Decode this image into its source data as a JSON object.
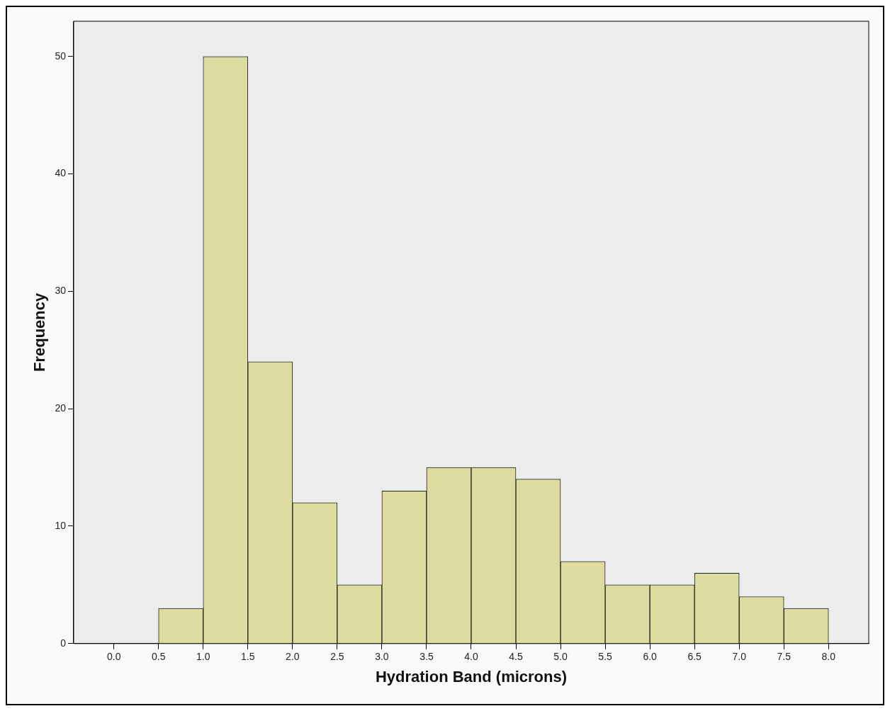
{
  "chart_data": {
    "type": "histogram",
    "xlabel": "Hydration Band (microns)",
    "ylabel": "Frequency",
    "bins": [
      0.5,
      1.0,
      1.5,
      2.0,
      2.5,
      3.0,
      3.5,
      4.0,
      4.5,
      5.0,
      5.5,
      6.0,
      6.5,
      7.0,
      7.5,
      8.0
    ],
    "values": [
      3,
      50,
      24,
      12,
      5,
      13,
      15,
      15,
      14,
      7,
      5,
      5,
      6,
      4,
      3
    ],
    "color": "#dcdca0",
    "xlim": [
      -0.45,
      8.45
    ],
    "xticks": [
      {
        "value": 0,
        "label": "0.0"
      },
      {
        "value": 0.5,
        "label": "0.5"
      },
      {
        "value": 1,
        "label": "1.0"
      },
      {
        "value": 1.5,
        "label": "1.5"
      },
      {
        "value": 2,
        "label": "2.0"
      },
      {
        "value": 2.5,
        "label": "2.5"
      },
      {
        "value": 3,
        "label": "3.0"
      },
      {
        "value": 3.5,
        "label": "3.5"
      },
      {
        "value": 4,
        "label": "4.0"
      },
      {
        "value": 4.5,
        "label": "4.5"
      },
      {
        "value": 5,
        "label": "5.0"
      },
      {
        "value": 5.5,
        "label": "5.5"
      },
      {
        "value": 6,
        "label": "6.0"
      },
      {
        "value": 6.5,
        "label": "6.5"
      },
      {
        "value": 7,
        "label": "7.0"
      },
      {
        "value": 7.5,
        "label": "7.5"
      },
      {
        "value": 8,
        "label": "8.0"
      }
    ],
    "ylim": [
      0,
      53
    ],
    "yticks": [
      0,
      10,
      20,
      30,
      40,
      50
    ],
    "grid": false
  }
}
